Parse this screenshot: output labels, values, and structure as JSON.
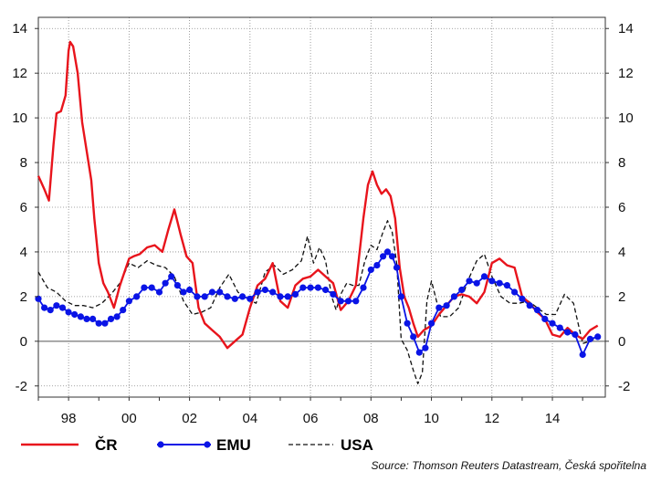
{
  "chart_data": {
    "type": "line",
    "title": "",
    "xlabel": "",
    "ylabel": "",
    "x_tick_labels": [
      "98",
      "00",
      "02",
      "04",
      "06",
      "08",
      "10",
      "12",
      "14"
    ],
    "x_tick_years": [
      1998,
      2000,
      2002,
      2004,
      2006,
      2008,
      2010,
      2012,
      2014
    ],
    "xlim": [
      1997.0,
      2015.75
    ],
    "ylim": [
      -2.5,
      14.5
    ],
    "y_ticks": [
      -2,
      0,
      2,
      4,
      6,
      8,
      10,
      12,
      14
    ],
    "y_tick_labels": [
      "-2",
      "0",
      "2",
      "4",
      "6",
      "8",
      "10",
      "12",
      "14"
    ],
    "grid": true,
    "dual_axis_labels": true,
    "legend_position": "bottom-left",
    "series": [
      {
        "name": "ČR",
        "color": "#e8141c",
        "style": "solid",
        "x": [
          1997.0,
          1997.2,
          1997.35,
          1997.5,
          1997.6,
          1997.75,
          1997.9,
          1998.0,
          1998.05,
          1998.15,
          1998.3,
          1998.45,
          1998.6,
          1998.75,
          1998.85,
          1999.0,
          1999.15,
          1999.3,
          1999.5,
          1999.7,
          1999.9,
          2000.0,
          2000.15,
          2000.35,
          2000.6,
          2000.85,
          2001.1,
          2001.3,
          2001.5,
          2001.7,
          2001.9,
          2002.1,
          2002.3,
          2002.5,
          2002.75,
          2003.0,
          2003.25,
          2003.5,
          2003.75,
          2004.0,
          2004.25,
          2004.5,
          2004.75,
          2005.0,
          2005.25,
          2005.5,
          2005.75,
          2006.0,
          2006.25,
          2006.5,
          2006.75,
          2007.0,
          2007.25,
          2007.5,
          2007.75,
          2007.9,
          2008.05,
          2008.2,
          2008.35,
          2008.5,
          2008.65,
          2008.8,
          2008.95,
          2009.1,
          2009.25,
          2009.4,
          2009.55,
          2009.75,
          2010.0,
          2010.25,
          2010.5,
          2010.75,
          2011.0,
          2011.25,
          2011.5,
          2011.75,
          2012.0,
          2012.25,
          2012.5,
          2012.75,
          2013.0,
          2013.25,
          2013.5,
          2013.75,
          2014.0,
          2014.25,
          2014.5,
          2014.75,
          2015.0,
          2015.25,
          2015.5
        ],
        "values": [
          7.4,
          6.8,
          6.3,
          8.8,
          10.2,
          10.3,
          11.0,
          13.0,
          13.4,
          13.2,
          12.0,
          9.8,
          8.5,
          7.2,
          5.5,
          3.5,
          2.6,
          2.2,
          1.5,
          2.5,
          3.3,
          3.7,
          3.8,
          3.9,
          4.2,
          4.3,
          4.0,
          5.0,
          5.9,
          4.8,
          3.8,
          3.5,
          1.5,
          0.8,
          0.5,
          0.2,
          -0.3,
          0.0,
          0.3,
          1.5,
          2.5,
          2.8,
          3.5,
          1.8,
          1.5,
          2.5,
          2.8,
          2.9,
          3.2,
          2.9,
          2.6,
          1.4,
          1.8,
          2.5,
          5.5,
          7.0,
          7.6,
          7.0,
          6.6,
          6.8,
          6.5,
          5.5,
          3.3,
          2.0,
          1.5,
          0.8,
          0.2,
          0.5,
          0.7,
          1.2,
          1.6,
          2.0,
          2.1,
          2.0,
          1.7,
          2.2,
          3.5,
          3.7,
          3.4,
          3.3,
          2.0,
          1.7,
          1.3,
          1.0,
          0.3,
          0.2,
          0.6,
          0.3,
          0.1,
          0.5,
          0.7
        ]
      },
      {
        "name": "EMU",
        "color": "#0a14e6",
        "style": "solid-markers",
        "x": [
          1997.0,
          1997.2,
          1997.4,
          1997.6,
          1997.8,
          1998.0,
          1998.2,
          1998.4,
          1998.6,
          1998.8,
          1999.0,
          1999.2,
          1999.4,
          1999.6,
          1999.8,
          2000.0,
          2000.25,
          2000.5,
          2000.75,
          2001.0,
          2001.2,
          2001.4,
          2001.6,
          2001.8,
          2002.0,
          2002.25,
          2002.5,
          2002.75,
          2003.0,
          2003.25,
          2003.5,
          2003.75,
          2004.0,
          2004.25,
          2004.5,
          2004.75,
          2005.0,
          2005.25,
          2005.5,
          2005.75,
          2006.0,
          2006.25,
          2006.5,
          2006.75,
          2007.0,
          2007.25,
          2007.5,
          2007.75,
          2008.0,
          2008.2,
          2008.4,
          2008.55,
          2008.7,
          2008.85,
          2009.0,
          2009.2,
          2009.4,
          2009.6,
          2009.8,
          2010.0,
          2010.25,
          2010.5,
          2010.75,
          2011.0,
          2011.25,
          2011.5,
          2011.75,
          2012.0,
          2012.25,
          2012.5,
          2012.75,
          2013.0,
          2013.25,
          2013.5,
          2013.75,
          2014.0,
          2014.25,
          2014.5,
          2014.75,
          2015.0,
          2015.25,
          2015.5
        ],
        "values": [
          1.9,
          1.5,
          1.4,
          1.6,
          1.5,
          1.3,
          1.2,
          1.1,
          1.0,
          1.0,
          0.8,
          0.8,
          1.0,
          1.1,
          1.4,
          1.8,
          2.0,
          2.4,
          2.4,
          2.2,
          2.6,
          2.9,
          2.5,
          2.2,
          2.3,
          2.0,
          2.0,
          2.2,
          2.2,
          2.0,
          1.9,
          2.0,
          1.9,
          2.2,
          2.3,
          2.2,
          2.0,
          2.0,
          2.1,
          2.4,
          2.4,
          2.4,
          2.3,
          2.1,
          1.8,
          1.8,
          1.8,
          2.4,
          3.2,
          3.4,
          3.8,
          4.0,
          3.8,
          3.3,
          2.0,
          0.8,
          0.2,
          -0.5,
          -0.3,
          0.8,
          1.5,
          1.6,
          2.0,
          2.3,
          2.7,
          2.6,
          2.9,
          2.7,
          2.6,
          2.5,
          2.2,
          1.9,
          1.6,
          1.4,
          1.0,
          0.8,
          0.6,
          0.4,
          0.3,
          -0.6,
          0.1,
          0.2
        ]
      },
      {
        "name": "USA",
        "color": "#111111",
        "style": "dashed",
        "x": [
          1997.0,
          1997.3,
          1997.6,
          1997.9,
          1998.2,
          1998.5,
          1998.8,
          1999.1,
          1999.4,
          1999.7,
          2000.0,
          2000.3,
          2000.6,
          2000.9,
          2001.2,
          2001.5,
          2001.8,
          2002.1,
          2002.4,
          2002.7,
          2003.0,
          2003.3,
          2003.6,
          2003.9,
          2004.2,
          2004.5,
          2004.8,
          2005.1,
          2005.4,
          2005.7,
          2005.9,
          2006.1,
          2006.3,
          2006.5,
          2006.7,
          2006.85,
          2007.0,
          2007.2,
          2007.4,
          2007.6,
          2007.8,
          2008.0,
          2008.2,
          2008.4,
          2008.55,
          2008.7,
          2008.85,
          2009.0,
          2009.2,
          2009.4,
          2009.55,
          2009.7,
          2009.85,
          2010.0,
          2010.3,
          2010.6,
          2010.9,
          2011.2,
          2011.5,
          2011.75,
          2012.0,
          2012.3,
          2012.6,
          2012.9,
          2013.2,
          2013.5,
          2013.8,
          2014.1,
          2014.4,
          2014.7,
          2015.0,
          2015.25,
          2015.5
        ],
        "values": [
          3.1,
          2.4,
          2.2,
          1.8,
          1.6,
          1.6,
          1.5,
          1.7,
          2.1,
          2.6,
          3.5,
          3.3,
          3.6,
          3.4,
          3.3,
          2.9,
          1.8,
          1.2,
          1.3,
          1.5,
          2.4,
          3.0,
          2.2,
          1.9,
          1.7,
          3.1,
          3.4,
          3.0,
          3.2,
          3.6,
          4.7,
          3.5,
          4.2,
          3.6,
          2.0,
          1.4,
          2.1,
          2.6,
          2.5,
          2.5,
          3.6,
          4.3,
          4.1,
          4.9,
          5.4,
          4.9,
          3.5,
          0.1,
          -0.4,
          -1.3,
          -1.9,
          -1.4,
          1.8,
          2.7,
          1.1,
          1.1,
          1.5,
          2.7,
          3.6,
          3.9,
          2.9,
          2.0,
          1.7,
          1.7,
          1.8,
          1.5,
          1.2,
          1.2,
          2.1,
          1.7,
          -0.1,
          0.0,
          0.2
        ]
      }
    ]
  },
  "source_text": "Source: Thomson Reuters Datastream, Česká spořitelna"
}
